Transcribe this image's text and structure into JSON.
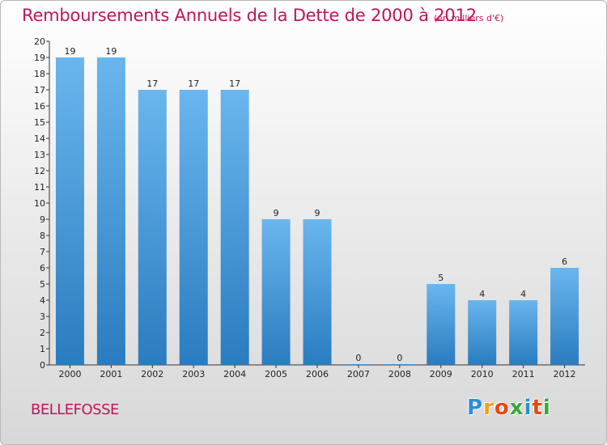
{
  "title": "Remboursements Annuels de la Dette de 2000 à 2012",
  "subtitle": "(en milliers d'€)",
  "commune": "BELLEFOSSE",
  "logo": {
    "letters": [
      "P",
      "r",
      "o",
      "x",
      "i",
      "t",
      "i"
    ],
    "colors": [
      "#2a8fd8",
      "#e9a21a",
      "#e04a12",
      "#3aa83a",
      "#2a8fd8",
      "#e04a12",
      "#3aa83a"
    ]
  },
  "colors": {
    "bar_light": "#6ab6ee",
    "bar_dark": "#2a7cc0",
    "title": "#c0145d"
  },
  "chart_data": {
    "type": "bar",
    "categories": [
      "2000",
      "2001",
      "2002",
      "2003",
      "2004",
      "2005",
      "2006",
      "2007",
      "2008",
      "2009",
      "2010",
      "2011",
      "2012"
    ],
    "values": [
      19,
      19,
      17,
      17,
      17,
      9,
      9,
      0,
      0,
      5,
      4,
      4,
      6
    ],
    "data_labels": [
      "19",
      "19",
      "17",
      "17",
      "17",
      "9",
      "9",
      "0",
      "0",
      "5",
      "4",
      "4",
      "6"
    ],
    "ylim": [
      0,
      20
    ],
    "yticks": [
      "0",
      "1",
      "2",
      "3",
      "4",
      "5",
      "6",
      "7",
      "8",
      "9",
      "10",
      "11",
      "12",
      "13",
      "14",
      "15",
      "16",
      "17",
      "18",
      "19",
      "20"
    ],
    "grid": false
  }
}
